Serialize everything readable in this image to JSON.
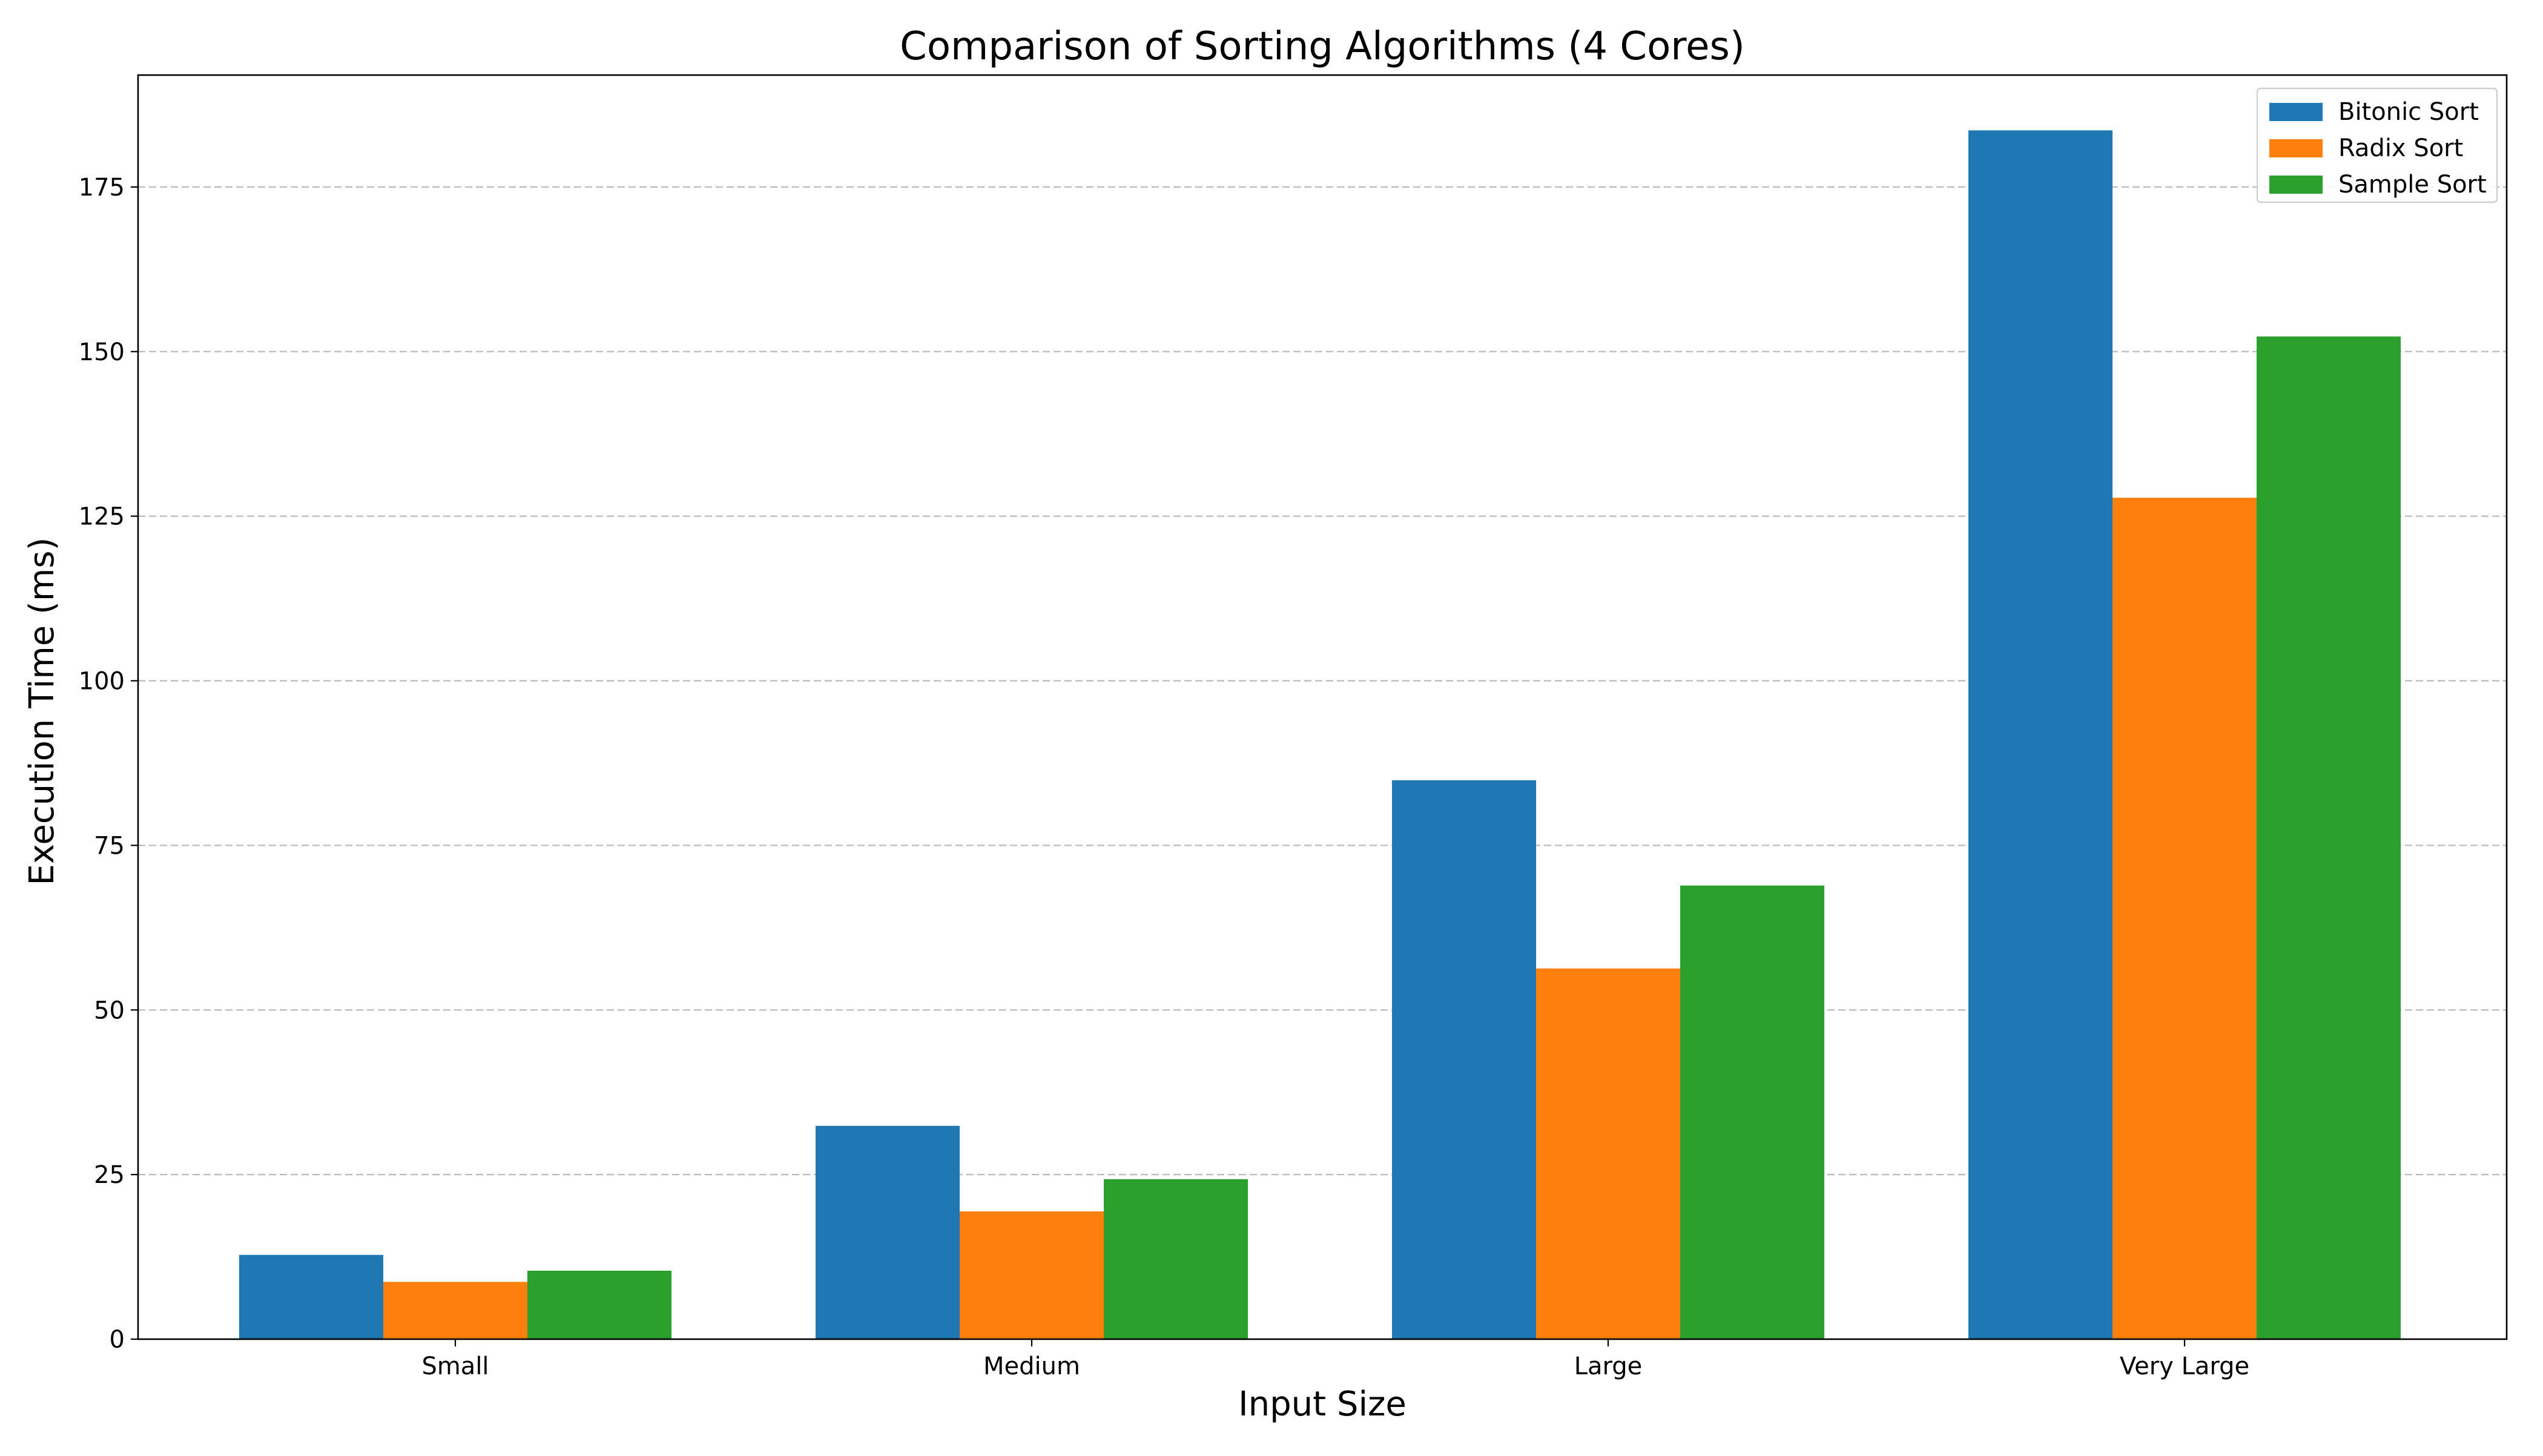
{
  "chart_data": {
    "type": "bar",
    "title": "Comparison of Sorting Algorithms (4 Cores)",
    "xlabel": "Input Size",
    "ylabel": "Execution Time (ms)",
    "categories": [
      "Small",
      "Medium",
      "Large",
      "Very Large"
    ],
    "series": [
      {
        "name": "Bitonic Sort",
        "color": "#1f77b4",
        "values": [
          12.8,
          32.4,
          84.9,
          183.6
        ]
      },
      {
        "name": "Radix Sort",
        "color": "#ff7f0e",
        "values": [
          8.7,
          19.4,
          56.3,
          127.8
        ]
      },
      {
        "name": "Sample Sort",
        "color": "#2ca02c",
        "values": [
          10.4,
          24.3,
          68.9,
          152.3
        ]
      }
    ],
    "ylim": [
      0,
      192
    ],
    "yticks": [
      0,
      25,
      50,
      75,
      100,
      125,
      150,
      175
    ],
    "grid": "y-dashed",
    "legend_position": "top-right"
  }
}
